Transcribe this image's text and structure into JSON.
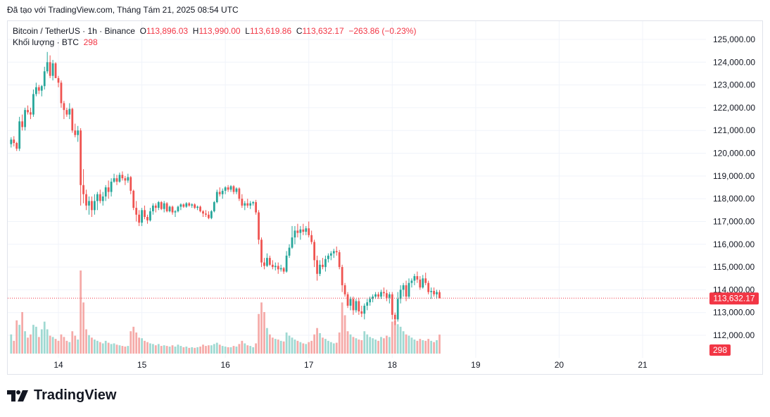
{
  "header": {
    "note": "Đã tạo với TradingView.com, Tháng Tám 21, 2025 08:54 UTC"
  },
  "legend": {
    "symbol": "Bitcoin / TetherUS · 1h · Binance",
    "o_label": "O",
    "o_value": "113,896.03",
    "h_label": "H",
    "h_value": "113,990.00",
    "l_label": "L",
    "l_value": "113,619.86",
    "c_label": "C",
    "c_value": "113,632.17",
    "change": "−263.86 (−0.23%)",
    "volume_label": "Khối lượng · BTC",
    "volume_value": "298"
  },
  "price_badge": "113,632.17",
  "volume_badge": "298",
  "brand": "TradingView",
  "colors": {
    "up": "#26a69a",
    "down": "#ef5350",
    "up_volume": "#9fd9d2",
    "down_volume": "#f5aaa8",
    "grid": "#f0f3fa",
    "text": "#131722",
    "badge": "#f23645"
  },
  "chart_data": {
    "type": "candlestick",
    "title": "Bitcoin / TetherUS · 1h · Binance",
    "interval": "1h",
    "y_ticks": [
      "112,000.00",
      "113,000.00",
      "114,000.00",
      "115,000.00",
      "116,000.00",
      "117,000.00",
      "118,000.00",
      "119,000.00",
      "120,000.00",
      "121,000.00",
      "122,000.00",
      "123,000.00",
      "124,000.00",
      "125,000.00"
    ],
    "y_tick_values": [
      112000,
      113000,
      114000,
      115000,
      116000,
      117000,
      118000,
      119000,
      120000,
      121000,
      122000,
      123000,
      124000,
      125000
    ],
    "ylim": [
      111600,
      125600
    ],
    "x_ticks": [
      "14",
      "15",
      "16",
      "17",
      "18",
      "19",
      "20",
      "21"
    ],
    "x_tick_index": [
      17,
      47,
      77,
      107,
      137,
      167,
      197,
      227
    ],
    "last_price": 113632.17,
    "last_volume": 298,
    "candles": [
      [
        0,
        120400,
        120700,
        120250,
        120600,
        300
      ],
      [
        1,
        120600,
        120750,
        120300,
        120450,
        200
      ],
      [
        2,
        120450,
        120500,
        120100,
        120200,
        520
      ],
      [
        3,
        120200,
        121600,
        120100,
        121400,
        450
      ],
      [
        4,
        121400,
        121700,
        121000,
        121150,
        650
      ],
      [
        5,
        121150,
        122000,
        121000,
        121900,
        350
      ],
      [
        6,
        121900,
        122100,
        121700,
        121800,
        250
      ],
      [
        7,
        121800,
        122000,
        121500,
        121700,
        300
      ],
      [
        8,
        121700,
        122800,
        121600,
        122600,
        450
      ],
      [
        9,
        122600,
        123100,
        122500,
        122900,
        420
      ],
      [
        10,
        122900,
        123000,
        122600,
        122750,
        260
      ],
      [
        11,
        122750,
        123000,
        122500,
        122950,
        380
      ],
      [
        12,
        122950,
        123800,
        122800,
        123600,
        500
      ],
      [
        13,
        123600,
        124450,
        123500,
        124000,
        380
      ],
      [
        14,
        124000,
        124300,
        123300,
        123400,
        280
      ],
      [
        15,
        123400,
        124100,
        123200,
        123950,
        260
      ],
      [
        16,
        123950,
        124000,
        123300,
        123300,
        230
      ],
      [
        17,
        123300,
        123400,
        122900,
        123100,
        200
      ],
      [
        18,
        123100,
        123200,
        122000,
        122200,
        300
      ],
      [
        19,
        122200,
        122300,
        121500,
        121900,
        260
      ],
      [
        20,
        121900,
        122000,
        121600,
        121700,
        200
      ],
      [
        21,
        121700,
        122200,
        121500,
        121950,
        180
      ],
      [
        22,
        121950,
        122000,
        120900,
        121000,
        350
      ],
      [
        23,
        121000,
        121300,
        120700,
        120800,
        280
      ],
      [
        24,
        120800,
        121200,
        120500,
        121000,
        220
      ],
      [
        25,
        121000,
        121100,
        117700,
        118600,
        1300
      ],
      [
        26,
        118600,
        119300,
        117800,
        118200,
        800
      ],
      [
        27,
        118200,
        118400,
        117500,
        117700,
        380
      ],
      [
        28,
        117700,
        118100,
        117300,
        117900,
        290
      ],
      [
        29,
        117900,
        118100,
        117200,
        117500,
        250
      ],
      [
        30,
        117500,
        118200,
        117300,
        117900,
        220
      ],
      [
        31,
        117900,
        118300,
        117500,
        118200,
        200
      ],
      [
        32,
        118200,
        118400,
        117800,
        117900,
        180
      ],
      [
        33,
        117900,
        118300,
        117700,
        118100,
        160
      ],
      [
        34,
        118100,
        118600,
        117900,
        118500,
        200
      ],
      [
        35,
        118500,
        118800,
        118000,
        118300,
        170
      ],
      [
        36,
        118300,
        118900,
        118100,
        118750,
        150
      ],
      [
        37,
        118750,
        119100,
        118700,
        118900,
        160
      ],
      [
        38,
        118900,
        119050,
        118600,
        118750,
        140
      ],
      [
        39,
        118750,
        119150,
        118700,
        119050,
        130
      ],
      [
        40,
        119050,
        119200,
        118800,
        118900,
        120
      ],
      [
        41,
        118900,
        119000,
        118600,
        118800,
        110
      ],
      [
        42,
        118800,
        119100,
        118700,
        118950,
        120
      ],
      [
        43,
        118950,
        119000,
        118200,
        118350,
        350
      ],
      [
        44,
        118350,
        118400,
        117500,
        117600,
        420
      ],
      [
        45,
        117600,
        117900,
        117000,
        117300,
        330
      ],
      [
        46,
        117300,
        117500,
        116800,
        116950,
        250
      ],
      [
        47,
        116950,
        117600,
        116800,
        117500,
        240
      ],
      [
        48,
        117500,
        117700,
        117100,
        117200,
        200
      ],
      [
        49,
        117200,
        117300,
        116900,
        117050,
        180
      ],
      [
        50,
        117050,
        117600,
        117000,
        117450,
        160
      ],
      [
        51,
        117450,
        117800,
        117300,
        117700,
        150
      ],
      [
        52,
        117700,
        117800,
        117400,
        117600,
        130
      ],
      [
        53,
        117600,
        117900,
        117500,
        117850,
        150
      ],
      [
        54,
        117850,
        117900,
        117500,
        117550,
        120
      ],
      [
        55,
        117550,
        117900,
        117400,
        117800,
        130
      ],
      [
        56,
        117800,
        117850,
        117400,
        117450,
        120
      ],
      [
        57,
        117450,
        117700,
        117400,
        117650,
        110
      ],
      [
        58,
        117650,
        117700,
        117300,
        117400,
        130
      ],
      [
        59,
        117400,
        117500,
        117200,
        117450,
        110
      ],
      [
        60,
        117450,
        117700,
        117400,
        117650,
        140
      ],
      [
        61,
        117650,
        117800,
        117500,
        117750,
        120
      ],
      [
        62,
        117750,
        117800,
        117600,
        117650,
        100
      ],
      [
        63,
        117650,
        117850,
        117600,
        117800,
        110
      ],
      [
        64,
        117800,
        117850,
        117650,
        117700,
        90
      ],
      [
        65,
        117700,
        117800,
        117600,
        117750,
        100
      ],
      [
        66,
        117750,
        117800,
        117550,
        117600,
        90
      ],
      [
        67,
        117600,
        117700,
        117500,
        117650,
        100
      ],
      [
        68,
        117650,
        117700,
        117400,
        117450,
        110
      ],
      [
        69,
        117450,
        117500,
        117200,
        117350,
        140
      ],
      [
        70,
        117350,
        117500,
        117200,
        117300,
        120
      ],
      [
        71,
        117300,
        117450,
        117100,
        117150,
        130
      ],
      [
        72,
        117150,
        117500,
        117100,
        117450,
        130
      ],
      [
        73,
        117450,
        117900,
        117400,
        117850,
        150
      ],
      [
        74,
        117850,
        118400,
        117800,
        118300,
        170
      ],
      [
        75,
        118300,
        118500,
        118100,
        118200,
        140
      ],
      [
        76,
        118200,
        118450,
        118000,
        118350,
        120
      ],
      [
        77,
        118350,
        118550,
        118200,
        118500,
        110
      ],
      [
        78,
        118500,
        118600,
        118300,
        118400,
        100
      ],
      [
        79,
        118400,
        118600,
        118300,
        118550,
        100
      ],
      [
        80,
        118550,
        118600,
        118200,
        118300,
        120
      ],
      [
        81,
        118300,
        118500,
        118200,
        118450,
        110
      ],
      [
        82,
        118450,
        118500,
        117900,
        118000,
        150
      ],
      [
        83,
        118000,
        118200,
        117600,
        117700,
        200
      ],
      [
        84,
        117700,
        117900,
        117500,
        117800,
        160
      ],
      [
        85,
        117800,
        118000,
        117600,
        117700,
        130
      ],
      [
        86,
        117700,
        117900,
        117550,
        117800,
        120
      ],
      [
        87,
        117800,
        117900,
        117700,
        117850,
        100
      ],
      [
        88,
        117850,
        117950,
        117300,
        117400,
        160
      ],
      [
        89,
        117400,
        117500,
        116000,
        116200,
        620
      ],
      [
        90,
        116200,
        116300,
        115000,
        115200,
        800
      ],
      [
        91,
        115200,
        115400,
        114900,
        115050,
        650
      ],
      [
        92,
        115050,
        115600,
        115000,
        115400,
        400
      ],
      [
        93,
        115400,
        115500,
        115050,
        115100,
        300
      ],
      [
        94,
        115100,
        115300,
        114900,
        115000,
        250
      ],
      [
        95,
        115000,
        115200,
        114850,
        115050,
        230
      ],
      [
        96,
        115050,
        115200,
        114700,
        114900,
        220
      ],
      [
        97,
        114900,
        115100,
        114800,
        114950,
        200
      ],
      [
        98,
        114950,
        115000,
        114700,
        114800,
        190
      ],
      [
        99,
        114800,
        115700,
        114750,
        115500,
        330
      ],
      [
        100,
        115500,
        116000,
        115400,
        115850,
        280
      ],
      [
        101,
        115850,
        116800,
        115800,
        116300,
        250
      ],
      [
        102,
        116300,
        116800,
        116000,
        116600,
        220
      ],
      [
        103,
        116600,
        116900,
        116300,
        116500,
        200
      ],
      [
        104,
        116500,
        116800,
        116200,
        116650,
        180
      ],
      [
        105,
        116650,
        116900,
        116400,
        116550,
        160
      ],
      [
        106,
        116550,
        116800,
        116400,
        116700,
        150
      ],
      [
        107,
        116700,
        117000,
        116300,
        116400,
        180
      ],
      [
        108,
        116400,
        116600,
        116000,
        116100,
        200
      ],
      [
        109,
        116100,
        116200,
        115000,
        115300,
        300
      ],
      [
        110,
        115300,
        115500,
        114400,
        114700,
        400
      ],
      [
        111,
        114700,
        115300,
        114600,
        115100,
        320
      ],
      [
        112,
        115100,
        115400,
        114900,
        115000,
        250
      ],
      [
        113,
        115000,
        115500,
        114800,
        115350,
        230
      ],
      [
        114,
        115350,
        115600,
        115200,
        115500,
        200
      ],
      [
        115,
        115500,
        115700,
        115300,
        115600,
        180
      ],
      [
        116,
        115600,
        115800,
        115400,
        115700,
        160
      ],
      [
        117,
        115700,
        115900,
        115500,
        115650,
        170
      ],
      [
        118,
        115650,
        115750,
        114900,
        115000,
        330
      ],
      [
        119,
        115000,
        115100,
        113900,
        114200,
        800
      ],
      [
        120,
        114200,
        114300,
        113700,
        113800,
        600
      ],
      [
        121,
        113800,
        113900,
        113200,
        113300,
        350
      ],
      [
        122,
        113300,
        113700,
        113100,
        113600,
        300
      ],
      [
        123,
        113600,
        113700,
        112900,
        113100,
        260
      ],
      [
        124,
        113100,
        113600,
        113000,
        113500,
        240
      ],
      [
        125,
        113500,
        113650,
        112900,
        113050,
        220
      ],
      [
        126,
        113050,
        113300,
        112800,
        112950,
        210
      ],
      [
        127,
        112950,
        113400,
        112700,
        113300,
        350
      ],
      [
        128,
        113300,
        113600,
        113100,
        113450,
        300
      ],
      [
        129,
        113450,
        113700,
        113300,
        113600,
        260
      ],
      [
        130,
        113600,
        113800,
        113450,
        113700,
        240
      ],
      [
        131,
        113700,
        113900,
        113600,
        113800,
        220
      ],
      [
        132,
        113800,
        113900,
        113600,
        113700,
        200
      ],
      [
        133,
        113700,
        114000,
        113600,
        113900,
        260
      ],
      [
        134,
        113900,
        114100,
        113700,
        113850,
        240
      ],
      [
        135,
        113850,
        114000,
        113500,
        113650,
        280
      ],
      [
        136,
        113650,
        113900,
        113400,
        113800,
        260
      ],
      [
        137,
        113800,
        113900,
        112700,
        112900,
        500
      ],
      [
        138,
        112900,
        113000,
        112450,
        112700,
        520
      ],
      [
        139,
        112700,
        113900,
        112600,
        113600,
        460
      ],
      [
        140,
        113600,
        114200,
        113400,
        114000,
        420
      ],
      [
        141,
        114000,
        114300,
        113700,
        114200,
        350
      ],
      [
        142,
        114200,
        114400,
        113500,
        113700,
        300
      ],
      [
        143,
        113700,
        114500,
        113600,
        114300,
        280
      ],
      [
        144,
        114300,
        114500,
        114100,
        114400,
        250
      ],
      [
        145,
        114400,
        114700,
        114200,
        114600,
        220
      ],
      [
        146,
        114600,
        114800,
        114300,
        114450,
        200
      ],
      [
        147,
        114450,
        114600,
        114000,
        114100,
        230
      ],
      [
        148,
        114100,
        114650,
        114050,
        114500,
        210
      ],
      [
        149,
        114500,
        114750,
        114200,
        114300,
        200
      ],
      [
        150,
        114300,
        114400,
        113800,
        113900,
        230
      ],
      [
        151,
        113900,
        114100,
        113600,
        113950,
        200
      ],
      [
        152,
        113950,
        114100,
        113700,
        113800,
        180
      ],
      [
        153,
        113800,
        114000,
        113600,
        113900,
        210
      ],
      [
        154,
        113896.03,
        113990,
        113619.86,
        113632.17,
        298
      ]
    ]
  }
}
